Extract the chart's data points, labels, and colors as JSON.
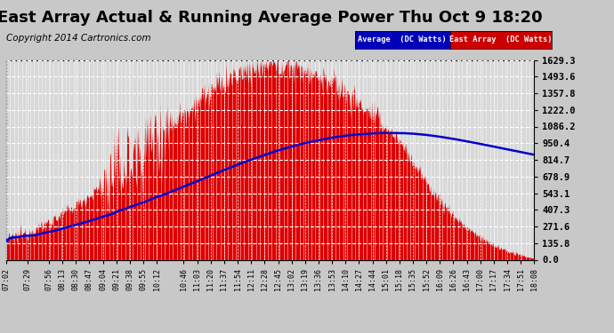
{
  "title": "East Array Actual & Running Average Power Thu Oct 9 18:20",
  "copyright": "Copyright 2014 Cartronics.com",
  "ylabel_ticks": [
    0.0,
    135.8,
    271.6,
    407.3,
    543.1,
    678.9,
    814.7,
    950.4,
    1086.2,
    1222.0,
    1357.8,
    1493.6,
    1629.3
  ],
  "x_tick_labels": [
    "07:02",
    "07:29",
    "07:56",
    "08:13",
    "08:30",
    "08:47",
    "09:04",
    "09:21",
    "09:38",
    "09:55",
    "10:12",
    "10:46",
    "11:03",
    "11:20",
    "11:37",
    "11:54",
    "12:11",
    "12:28",
    "12:45",
    "13:02",
    "13:19",
    "13:36",
    "13:53",
    "14:10",
    "14:27",
    "14:44",
    "15:01",
    "15:18",
    "15:35",
    "15:52",
    "16:09",
    "16:26",
    "16:43",
    "17:00",
    "17:17",
    "17:34",
    "17:51",
    "18:08"
  ],
  "bg_color": "#c8c8c8",
  "plot_bg_color": "#d8d8d8",
  "grid_color": "#ffffff",
  "bar_color": "#dd0000",
  "avg_color": "#0000cc",
  "legend_avg_bg": "#0000bb",
  "legend_arr_bg": "#cc0000",
  "title_fontsize": 13,
  "copyright_fontsize": 7.5,
  "ymax": 1629.3,
  "ymin": 0.0
}
